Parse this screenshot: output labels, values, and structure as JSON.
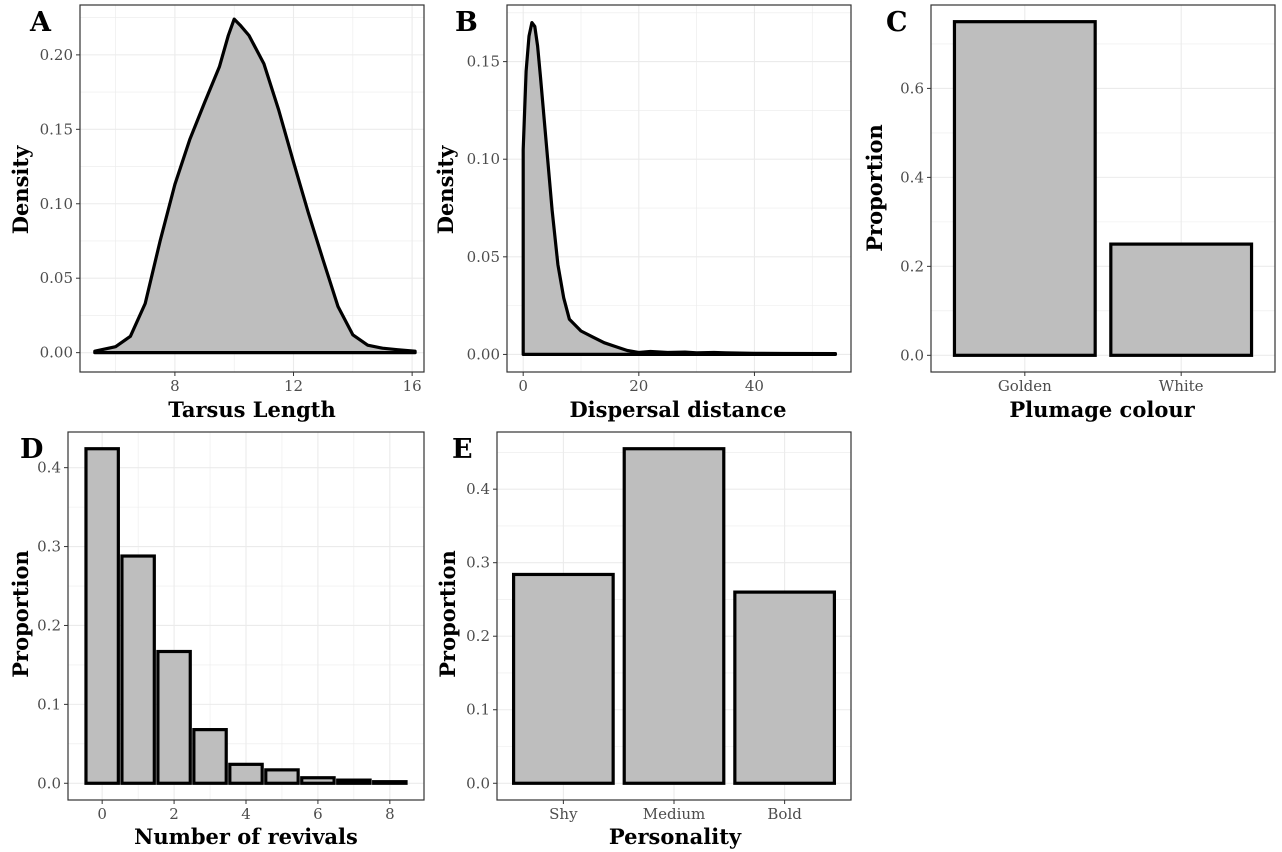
{
  "chart_data": [
    {
      "panel": "A",
      "type": "area",
      "xlabel": "Tarsus Length",
      "ylabel": "Density",
      "xlim": [
        4.8,
        16.4
      ],
      "ylim": [
        -0.013,
        0.2335
      ],
      "xticks": [
        8,
        12,
        16
      ],
      "yticks": [
        0.0,
        0.05,
        0.1,
        0.15,
        0.2
      ],
      "ytick_labels": [
        "0.00",
        "0.05",
        "0.10",
        "0.15",
        "0.20"
      ],
      "grid": true,
      "x": [
        5.3,
        6.0,
        6.5,
        7.0,
        7.5,
        8.0,
        8.5,
        9.0,
        9.5,
        9.8,
        10.0,
        10.2,
        10.5,
        11.0,
        11.5,
        12.0,
        12.5,
        13.0,
        13.5,
        14.0,
        14.5,
        15.0,
        15.5,
        16.1
      ],
      "y": [
        0.001,
        0.004,
        0.011,
        0.033,
        0.075,
        0.113,
        0.143,
        0.168,
        0.192,
        0.213,
        0.224,
        0.22,
        0.213,
        0.194,
        0.163,
        0.128,
        0.094,
        0.062,
        0.031,
        0.012,
        0.005,
        0.003,
        0.002,
        0.001
      ]
    },
    {
      "panel": "B",
      "type": "area",
      "xlabel": "Dispersal distance",
      "ylabel": "Density",
      "xlim": [
        -2.8,
        56.7
      ],
      "ylim": [
        -0.009,
        0.179
      ],
      "xticks": [
        0,
        20,
        40
      ],
      "yticks": [
        0.0,
        0.05,
        0.1,
        0.15
      ],
      "ytick_labels": [
        "0.00",
        "0.05",
        "0.10",
        "0.15"
      ],
      "grid": true,
      "x": [
        0,
        0.5,
        1.0,
        1.5,
        2.0,
        2.5,
        3.0,
        4.0,
        5.0,
        6.0,
        7.0,
        8.0,
        10.0,
        12.0,
        14.0,
        16.0,
        18.0,
        20.0,
        22.0,
        25.0,
        28.0,
        30.0,
        33.0,
        35.0,
        40.0,
        45.0,
        54.0
      ],
      "y": [
        0.105,
        0.145,
        0.163,
        0.17,
        0.168,
        0.158,
        0.142,
        0.108,
        0.074,
        0.046,
        0.029,
        0.018,
        0.012,
        0.009,
        0.006,
        0.004,
        0.002,
        0.001,
        0.0015,
        0.001,
        0.0012,
        0.0008,
        0.001,
        0.0008,
        0.0006,
        0.0005,
        0.0004
      ]
    },
    {
      "panel": "C",
      "type": "bar",
      "xlabel": "Plumage colour",
      "ylabel": "Proportion",
      "categories": [
        "Golden",
        "White"
      ],
      "values": [
        0.75,
        0.25
      ],
      "ylim": [
        -0.0375,
        0.7875
      ],
      "yticks": [
        0.0,
        0.2,
        0.4,
        0.6
      ],
      "ytick_labels": [
        "0.0",
        "0.2",
        "0.4",
        "0.6"
      ],
      "grid": true
    },
    {
      "panel": "D",
      "type": "bar",
      "xlabel": "Number of revivals",
      "ylabel": "Proportion",
      "x": [
        0,
        1,
        2,
        3,
        4,
        5,
        6,
        7,
        8
      ],
      "values": [
        0.424,
        0.288,
        0.167,
        0.068,
        0.024,
        0.017,
        0.007,
        0.004,
        0.002
      ],
      "xlim": [
        -0.95,
        8.95
      ],
      "xticks": [
        0,
        2,
        4,
        6,
        8
      ],
      "ylim": [
        -0.0212,
        0.4452
      ],
      "yticks": [
        0.0,
        0.1,
        0.2,
        0.3,
        0.4
      ],
      "ytick_labels": [
        "0.0",
        "0.1",
        "0.2",
        "0.3",
        "0.4"
      ],
      "grid": true
    },
    {
      "panel": "E",
      "type": "bar",
      "xlabel": "Personality",
      "ylabel": "Proportion",
      "categories": [
        "Shy",
        "Medium",
        "Bold"
      ],
      "values": [
        0.284,
        0.455,
        0.26
      ],
      "ylim": [
        -0.02275,
        0.47775
      ],
      "yticks": [
        0.0,
        0.1,
        0.2,
        0.3,
        0.4
      ],
      "ytick_labels": [
        "0.0",
        "0.1",
        "0.2",
        "0.3",
        "0.4"
      ],
      "grid": true
    }
  ],
  "style": {
    "fill": "#bebebe",
    "stroke": "#000000",
    "grid": "#ebebeb",
    "panel_border": "#333333",
    "tick_label": "#4d4d4d"
  }
}
